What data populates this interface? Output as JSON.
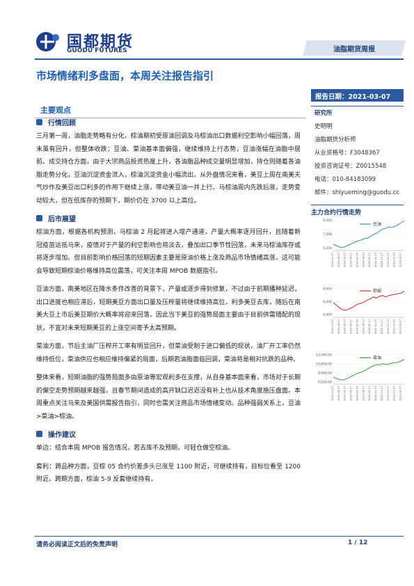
{
  "header": {
    "logo_cn": "国都期货",
    "logo_en": "GUODU FUTURES",
    "tag": "油脂期货周报"
  },
  "title": "市场情绪利多盘面，本周关注报告指引",
  "report_date": "报告日期：2021-03-07",
  "sidebar": {
    "org": "研究所",
    "analyst": "史明明",
    "role": "油脂期货分析师",
    "license": "从业资格号：F3048367",
    "consult": "投资咨询证号：Z0015548",
    "phone": "电话：010-84183099",
    "email": "邮件：shiyueming@guodu.cc",
    "charts_title": "主力合约行情走势"
  },
  "main": {
    "heading": "主要观点",
    "sections": [
      {
        "heading": "行情回顾",
        "paragraphs": [
          "三月第一周，油脂走势略有分化，棕油期初受原油回调及马棕油出口数据利空影响小幅回落，周末虽有回升，但整体收跌；豆油、菜油基本面偏强，继续维持上行态势，豆油涨幅在油脂中居前。成交持仓方面，由于大宗商品投资热度上升，各油脂品种成交量明显增加，持仓则随着各油脂走势分化，豆油沉淀资金流入，棕油沉淀资金小幅流出。从外盘情况来看，美豆上周在南美天气炒作及美豆出口利多的作用下继续上涨，带动美豆油一并上行。马棕油周内先跌后涨，走势变动较大，但在低库存的预期下，期价仍在 3700 以上高位。"
        ]
      },
      {
        "heading": "后市展望",
        "paragraphs": [
          "棕油方面，根据各机构预测，马棕油 2 月起将进入增产通道，产量大概率逐月回升，且随着新冠疫苗运抵马来，疫情对于产量的利空影响也将淡去，叠加出口季节性回落，未来马棕油库存或将逐步增加。但目前影响价格回落的短期因素主要是原油价格上涨及商品市场情绪高涨，这可能会导致短期棕油价格维持高位震荡，可关注本周 MPOB 数据指引。",
          "豆油方面，南美地区在降水条件改善的背景下，产量或逐步得到修复，不过由于前期播种延迟，出口进度也相应滞后，短期美豆方面出口量及压榨量将继续维持高位，利多美豆去库，随后在南美大豆上市后美豆期价大概率将迎来回落，因此当下美豆的强势局面主要由于目前供需错配的现状，不宜对未来短期美豆的上涨空间寄予太高预期。",
          "菜油方面，节后主油厂压榨开工率有明显回升，但菜油受制于进口偏低的现状，油厂开工率仍然维持低位，菜油供应也相应维持偏紧的局面，后期若油脂面临回调，菜油将是相对抗跌的品种。",
          "整体来看，短期油脂的强势局面多由原油等宏观利多在支撑，从自身基本面来看，市场对于长期的偏空走势预期越来越强，且春节期间造成的高开缺口迟迟没有补上也从技术角度施压盘面。本周重点关注马来及美国供需报告指引，同时也需关注商品市场情绪变动。品种强弱关系上，豆油>菜油>棕油。"
        ]
      },
      {
        "heading": "操作建议",
        "paragraphs": [
          "单边：结合本周 MPOB 报告情况，若去库不及预期，可轻仓做空棕油。",
          "套利：跨品种方面，豆棕 05 合约价差多头已涨至 1100 附近，可继续持有，目标位看至 1200 附近。跨期方面，棕油 5-9 反套继续持有。"
        ]
      }
    ]
  },
  "footer": {
    "disclaimer": "请务必阅读正文后的免责声明",
    "page": "1 / 12"
  },
  "chart_data": [
    {
      "type": "line",
      "categories": [
        "2020-03-17",
        null,
        "2020-04-17",
        null,
        "2020-05-17",
        null,
        "2020-06-17",
        null,
        "2020-07-17",
        null,
        "2020-08-17",
        null,
        "2020-09-17",
        null,
        "2020-10-17",
        null,
        "2020-11-17",
        null,
        "2020-12-17",
        null,
        "2021-01-17",
        null,
        "2021-02-17",
        null
      ],
      "series": [
        {
          "name": "豆油",
          "color": "#3a8ea8",
          "values": [
            5700,
            5500,
            5300,
            5250,
            5400,
            5600,
            5800,
            6000,
            6200,
            6300,
            6500,
            6600,
            6800,
            7100,
            7300,
            7600,
            7900,
            8000,
            8200,
            8100,
            8300,
            8500,
            8800,
            9100
          ]
        }
      ],
      "ylim": [
        4800,
        9400
      ],
      "yticks": [
        {
          "value": 5200,
          "label": "5,200"
        },
        {
          "value": 7200,
          "label": "7,200"
        },
        {
          "value": 9200,
          "label": "9,200"
        }
      ]
    },
    {
      "type": "line",
      "categories": [
        "2020-03-17",
        null,
        "2020-04-17",
        null,
        "2020-05-17",
        null,
        "2020-06-17",
        null,
        "2020-07-17",
        null,
        "2020-08-17",
        null,
        "2020-09-17",
        null,
        "2020-10-17",
        null,
        "2020-11-17",
        null,
        "2020-12-17",
        null,
        "2021-01-17",
        null,
        "2021-02-17",
        null
      ],
      "series": [
        {
          "name": "棕榈",
          "color": "#d42a2a",
          "values": [
            5800,
            5400,
            5000,
            4700,
            4600,
            4800,
            5000,
            5300,
            5600,
            5700,
            5900,
            6200,
            6400,
            6700,
            6500,
            6800,
            6900,
            6700,
            6900,
            7000,
            7100,
            7200,
            7300,
            7600
          ]
        }
      ],
      "ylim": [
        3500,
        8500
      ],
      "yticks": [
        {
          "value": 4000,
          "label": "4,000"
        },
        {
          "value": 6000,
          "label": "6,000"
        },
        {
          "value": 8000,
          "label": "8,000"
        }
      ]
    },
    {
      "type": "line",
      "categories": [
        "2020-03-17",
        null,
        "2020-04-17",
        null,
        "2020-05-17",
        null,
        "2020-06-17",
        null,
        "2020-07-17",
        null,
        "2020-08-17",
        null,
        "2020-09-17",
        null,
        "2020-10-17",
        null,
        "2020-11-17",
        null,
        "2020-12-17",
        null,
        "2021-01-17",
        null,
        "2021-02-17",
        null
      ],
      "series": [
        {
          "name": "菜油",
          "color": "#3a9a3a",
          "values": [
            7000,
            6800,
            6500,
            6400,
            6600,
            6900,
            7300,
            7600,
            7900,
            8100,
            8400,
            8800,
            9200,
            9500,
            9800,
            9700,
            10000,
            9800,
            9900,
            10100,
            10200,
            10300,
            10600,
            10900
          ]
        }
      ],
      "ylim": [
        5500,
        12500
      ],
      "yticks": [
        {
          "value": 6000,
          "label": "6,000.00"
        },
        {
          "value": 8000,
          "label": "8,000.00"
        },
        {
          "value": 10000,
          "label": "10,000.00"
        },
        {
          "value": 12000,
          "label": "12,000.00"
        }
      ]
    }
  ]
}
